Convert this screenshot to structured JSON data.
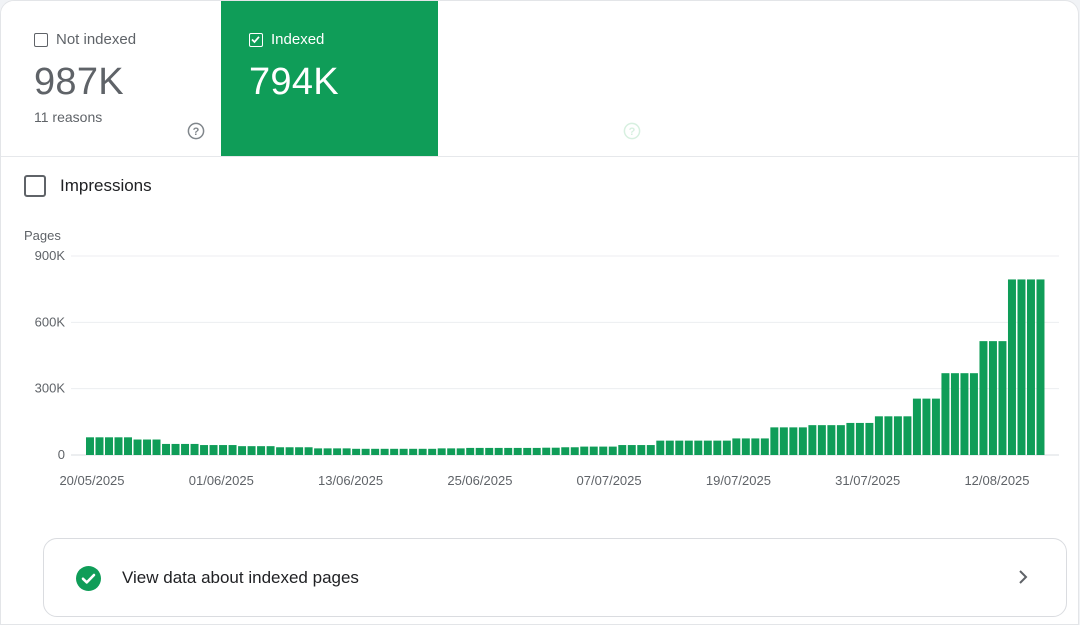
{
  "tabs": {
    "not_indexed": {
      "label": "Not indexed",
      "value": "987K",
      "sub": "11 reasons",
      "help_icon": "help-circle-icon",
      "checked": false
    },
    "indexed": {
      "label": "Indexed",
      "value": "794K",
      "help_icon": "help-circle-icon",
      "checked": true,
      "color": "#0f9d58"
    }
  },
  "impressions": {
    "label": "Impressions",
    "checked": false
  },
  "chart_data": {
    "type": "bar",
    "ylabel": "Pages",
    "ylim": [
      0,
      900000
    ],
    "yticks": [
      0,
      300000,
      600000,
      900000
    ],
    "ytick_labels": [
      "0",
      "300K",
      "600K",
      "900K"
    ],
    "xtick_labels": [
      "20/05/2025",
      "01/06/2025",
      "13/06/2025",
      "25/06/2025",
      "07/07/2025",
      "19/07/2025",
      "31/07/2025",
      "12/08/2025"
    ],
    "grid": true,
    "color": "#0f9d58",
    "values": [
      80000,
      80000,
      80000,
      80000,
      80000,
      70000,
      70000,
      70000,
      50000,
      50000,
      50000,
      50000,
      45000,
      45000,
      45000,
      45000,
      40000,
      40000,
      40000,
      40000,
      35000,
      35000,
      35000,
      35000,
      30000,
      30000,
      30000,
      30000,
      28000,
      28000,
      28000,
      28000,
      28000,
      28000,
      28000,
      28000,
      28000,
      30000,
      30000,
      30000,
      32000,
      32000,
      32000,
      32000,
      32000,
      32000,
      32000,
      32000,
      33000,
      33000,
      35000,
      35000,
      38000,
      38000,
      38000,
      38000,
      45000,
      45000,
      45000,
      45000,
      65000,
      65000,
      65000,
      65000,
      65000,
      65000,
      65000,
      65000,
      75000,
      75000,
      75000,
      75000,
      125000,
      125000,
      125000,
      125000,
      135000,
      135000,
      135000,
      135000,
      145000,
      145000,
      145000,
      175000,
      175000,
      175000,
      175000,
      255000,
      255000,
      255000,
      370000,
      370000,
      370000,
      370000,
      515000,
      515000,
      515000,
      794000,
      794000,
      794000,
      794000
    ]
  },
  "footer_link": {
    "label": "View data about indexed pages",
    "icon": "check-circle-icon",
    "chevron": "chevron-right-icon",
    "icon_color": "#0f9d58"
  }
}
